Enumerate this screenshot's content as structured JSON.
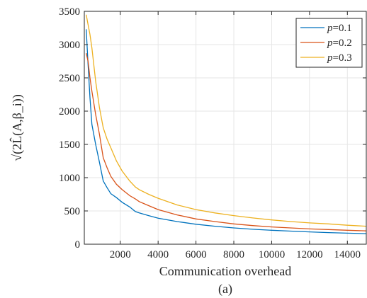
{
  "caption": "(a)",
  "chart_data": {
    "type": "line",
    "xlabel": "Communication overhead",
    "ylabel": "√(2L̂(A,β_i))",
    "xlim": [
      100,
      15000
    ],
    "ylim": [
      0,
      3500
    ],
    "xticks": [
      2000,
      4000,
      6000,
      8000,
      10000,
      12000,
      14000
    ],
    "yticks": [
      0,
      500,
      1000,
      1500,
      2000,
      2500,
      3000,
      3500
    ],
    "xtick_labels": [
      "2000",
      "4000",
      "6000",
      "8000",
      "10000",
      "12000",
      "14000"
    ],
    "ytick_labels": [
      "0",
      "500",
      "1000",
      "1500",
      "2000",
      "2500",
      "3000",
      "3500"
    ],
    "grid": true,
    "legend_position": "top-right",
    "series": [
      {
        "name": "p=0.1",
        "legend_var": "p",
        "legend_val": "=0.1",
        "color": "#0072BD",
        "x": [
          200,
          300,
          400,
          500,
          700,
          900,
          1100,
          1300,
          1500,
          1800,
          2100,
          2500,
          2800,
          3000,
          3500,
          4000,
          5000,
          6000,
          7000,
          8000,
          9000,
          10000,
          11000,
          12000,
          13000,
          14000,
          15000
        ],
        "y": [
          3230,
          2700,
          2200,
          1800,
          1500,
          1230,
          950,
          850,
          760,
          700,
          630,
          560,
          490,
          470,
          430,
          390,
          340,
          300,
          270,
          245,
          225,
          210,
          197,
          185,
          175,
          166,
          158
        ]
      },
      {
        "name": "p=0.2",
        "legend_var": "p",
        "legend_val": "=0.2",
        "color": "#D95319",
        "x": [
          200,
          300,
          400,
          500,
          700,
          900,
          1100,
          1300,
          1500,
          1800,
          2100,
          2500,
          2800,
          3000,
          3500,
          4000,
          5000,
          6000,
          7000,
          8000,
          9000,
          10000,
          11000,
          12000,
          13000,
          14000,
          15000
        ],
        "y": [
          2870,
          2750,
          2500,
          2300,
          1950,
          1650,
          1300,
          1150,
          1020,
          900,
          820,
          730,
          680,
          640,
          580,
          520,
          440,
          380,
          340,
          305,
          280,
          260,
          245,
          230,
          220,
          210,
          200
        ]
      },
      {
        "name": "p=0.3",
        "legend_var": "p",
        "legend_val": "=0.3",
        "color": "#EDB120",
        "x": [
          200,
          300,
          400,
          500,
          700,
          900,
          1100,
          1300,
          1500,
          1800,
          2100,
          2500,
          2800,
          3000,
          3500,
          4000,
          5000,
          6000,
          7000,
          8000,
          9000,
          10000,
          11000,
          12000,
          13000,
          14000,
          15000
        ],
        "y": [
          3450,
          3300,
          3150,
          2950,
          2450,
          2050,
          1750,
          1580,
          1450,
          1250,
          1100,
          950,
          860,
          820,
          750,
          690,
          590,
          520,
          470,
          430,
          395,
          365,
          340,
          320,
          305,
          285,
          270
        ]
      }
    ]
  }
}
